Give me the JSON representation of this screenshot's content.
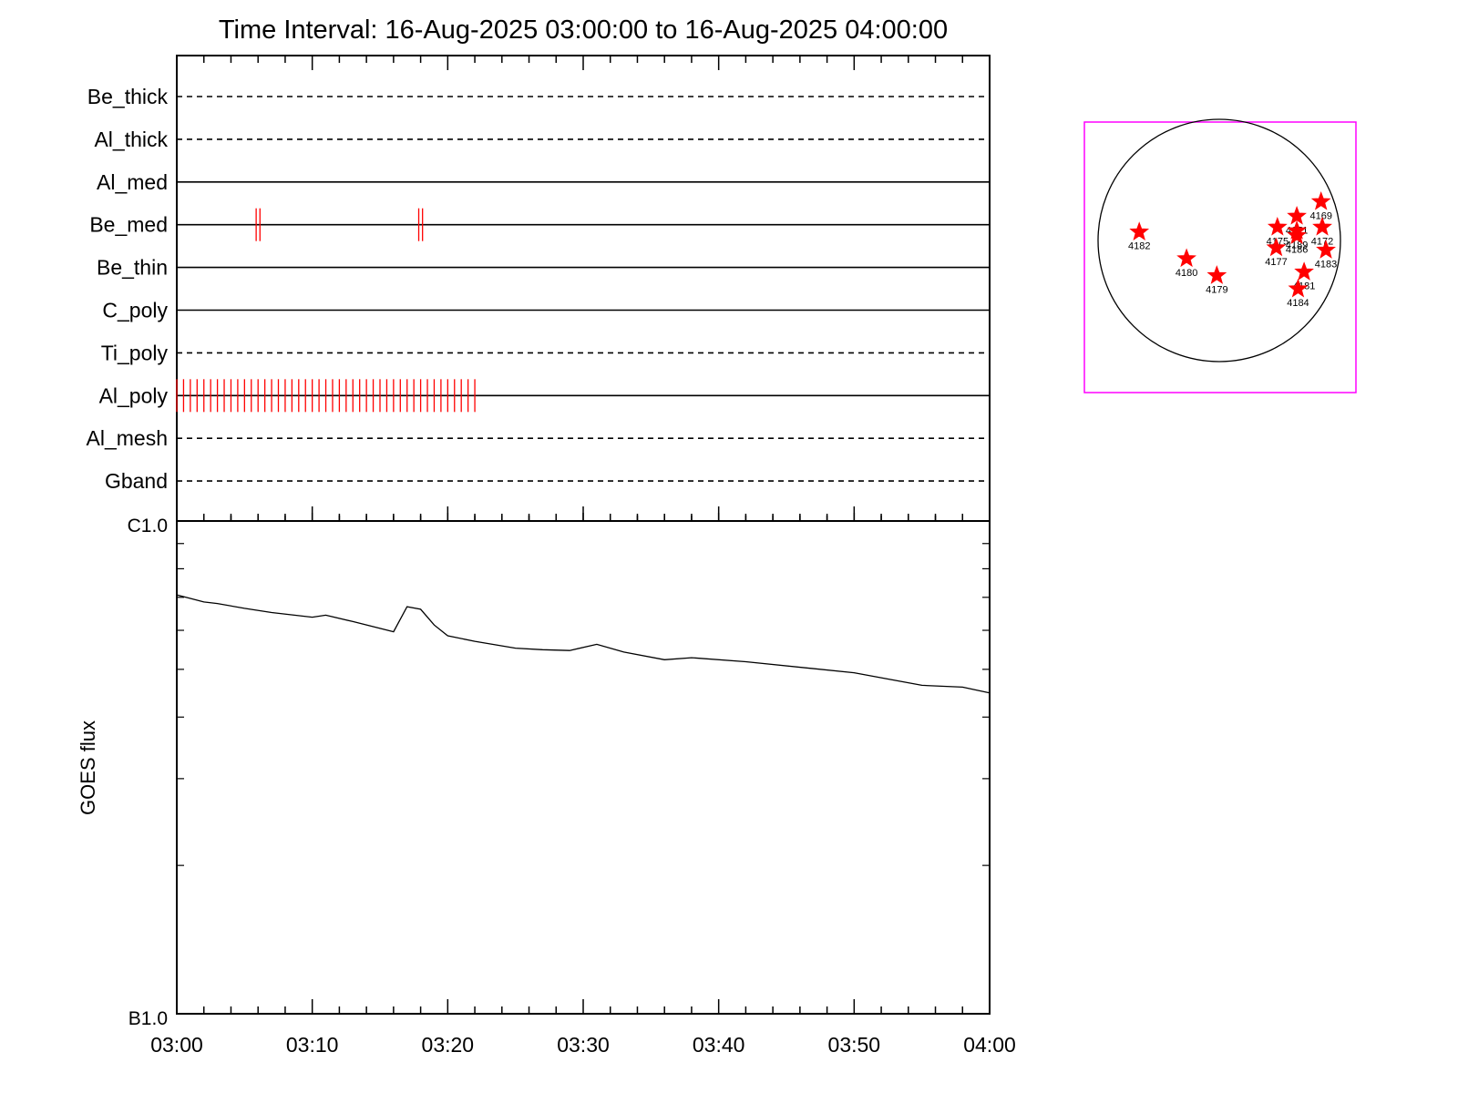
{
  "title": "Time Interval: 16-Aug-2025 03:00:00 to 16-Aug-2025 04:00:00",
  "colors": {
    "axis": "#000000",
    "event_marks": "#ff0000",
    "sun_box": "#ff00ff",
    "stars": "#ff0000"
  },
  "chart_data": [
    {
      "type": "line",
      "name": "filter-panel",
      "x_range": [
        "03:00",
        "04:00"
      ],
      "rows": [
        {
          "label": "Be_thick",
          "style": "dashed",
          "marks": []
        },
        {
          "label": "Al_thick",
          "style": "dashed",
          "marks": []
        },
        {
          "label": "Al_med",
          "style": "solid",
          "marks": []
        },
        {
          "label": "Be_med",
          "style": "solid",
          "marks": [
            "03:06",
            "03:06",
            "03:18",
            "03:18"
          ]
        },
        {
          "label": "Be_thin",
          "style": "solid",
          "marks": []
        },
        {
          "label": "C_poly",
          "style": "solid",
          "marks": []
        },
        {
          "label": "Ti_poly",
          "style": "dashed",
          "marks": []
        },
        {
          "label": "Al_poly",
          "style": "solid",
          "marks_range": {
            "from": "03:00",
            "to": "03:22",
            "count": 45
          }
        },
        {
          "label": "Al_mesh",
          "style": "dashed",
          "marks": []
        },
        {
          "label": "Gband",
          "style": "dashed",
          "marks": []
        }
      ]
    },
    {
      "type": "line",
      "name": "goes-flux",
      "ylabel": "GOES flux",
      "yscale": "log",
      "ylim": [
        "B1.0",
        "C1.0"
      ],
      "yticks": [
        "C1.0",
        "B1.0"
      ],
      "xticks": [
        "03:00",
        "03:10",
        "03:20",
        "03:30",
        "03:40",
        "03:50",
        "04:00"
      ],
      "x_minutes": [
        0,
        2,
        3,
        5,
        7,
        10,
        11,
        13,
        16,
        17,
        18,
        19,
        20,
        22,
        25,
        27,
        29,
        31,
        33,
        36,
        38,
        42,
        50,
        53,
        55,
        58,
        60
      ],
      "y_class_B": [
        7.08,
        6.85,
        6.8,
        6.65,
        6.52,
        6.38,
        6.44,
        6.25,
        5.96,
        6.7,
        6.62,
        6.15,
        5.85,
        5.7,
        5.52,
        5.48,
        5.46,
        5.62,
        5.42,
        5.23,
        5.28,
        5.18,
        4.92,
        4.75,
        4.64,
        4.6,
        4.48
      ]
    },
    {
      "type": "scatter",
      "name": "active-region-map",
      "points": [
        {
          "label": "4169",
          "x": 0.84,
          "y": 0.32
        },
        {
          "label": "4171",
          "x": 0.64,
          "y": 0.2
        },
        {
          "label": "4189",
          "x": 0.64,
          "y": 0.08
        },
        {
          "label": "4175",
          "x": 0.48,
          "y": 0.11
        },
        {
          "label": "4172",
          "x": 0.85,
          "y": 0.11
        },
        {
          "label": "4186",
          "x": 0.64,
          "y": 0.04
        },
        {
          "label": "4177",
          "x": 0.47,
          "y": -0.06
        },
        {
          "label": "4183",
          "x": 0.88,
          "y": -0.08
        },
        {
          "label": "4181",
          "x": 0.7,
          "y": -0.26
        },
        {
          "label": "4184",
          "x": 0.65,
          "y": -0.4
        },
        {
          "label": "4182",
          "x": -0.66,
          "y": 0.07
        },
        {
          "label": "4180",
          "x": -0.27,
          "y": -0.15
        },
        {
          "label": "4179",
          "x": -0.02,
          "y": -0.29
        }
      ]
    }
  ]
}
